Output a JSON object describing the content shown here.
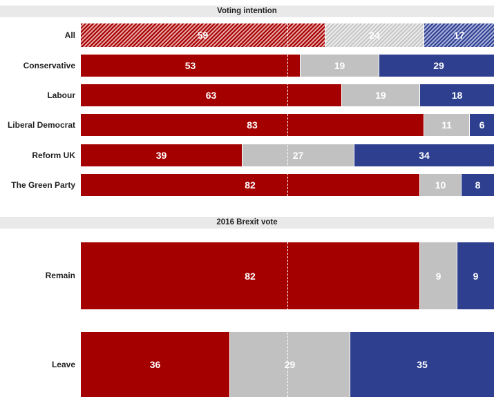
{
  "chart_data": [
    {
      "type": "bar",
      "stacked": true,
      "orientation": "horizontal",
      "title": "Voting intention",
      "categories": [
        "All",
        "Conservative",
        "Labour",
        "Liberal Democrat",
        "Reform UK",
        "The Green Party"
      ],
      "series": [
        {
          "values": [
            59,
            53,
            63,
            83,
            39,
            82
          ],
          "color": "#a50000"
        },
        {
          "values": [
            24,
            19,
            19,
            11,
            27,
            10
          ],
          "color": "#c1c1c1"
        },
        {
          "values": [
            17,
            29,
            18,
            6,
            34,
            8
          ],
          "color": "#2e3f8f"
        }
      ],
      "hatched_categories": [
        "All"
      ],
      "reference_line": 50,
      "xlim": [
        0,
        100
      ]
    },
    {
      "type": "bar",
      "stacked": true,
      "orientation": "horizontal",
      "title": "2016 Brexit vote",
      "categories": [
        "Remain",
        "Leave"
      ],
      "series": [
        {
          "values": [
            82,
            36
          ],
          "color": "#a50000"
        },
        {
          "values": [
            9,
            29
          ],
          "color": "#c1c1c1"
        },
        {
          "values": [
            9,
            35
          ],
          "color": "#2e3f8f"
        }
      ],
      "reference_line": 50,
      "xlim": [
        0,
        100
      ]
    }
  ]
}
